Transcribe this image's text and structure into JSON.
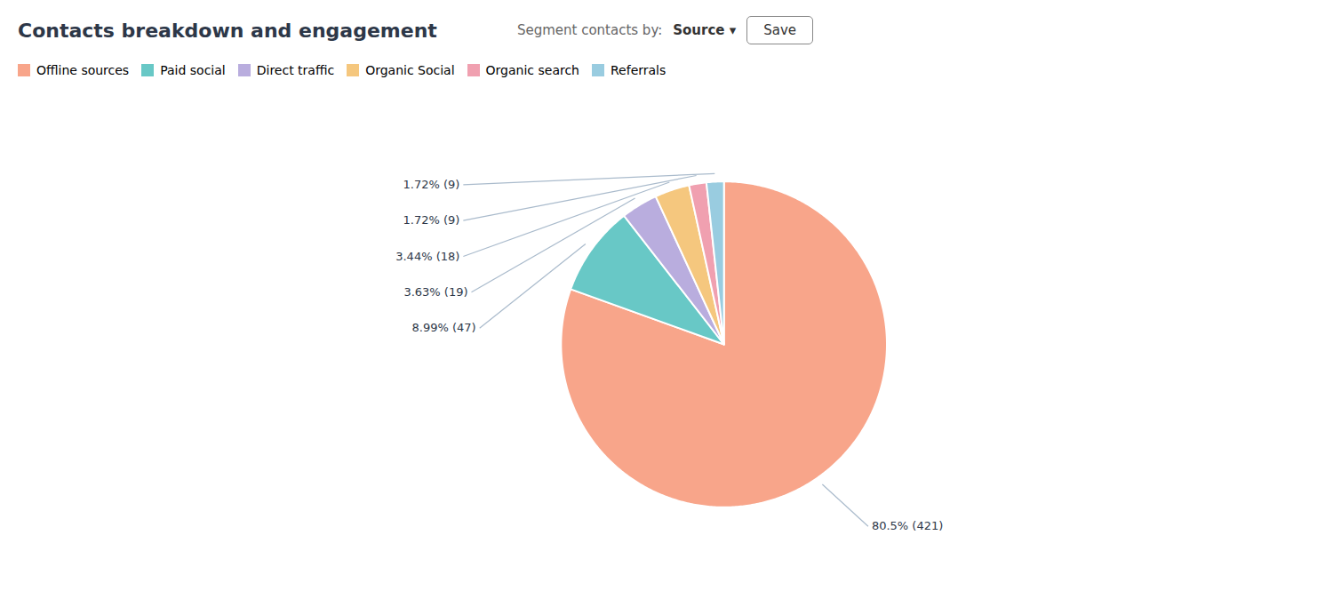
{
  "chart_data": {
    "type": "pie",
    "title": "Contacts breakdown and engagement",
    "annotations": [
      "Segment contacts by:",
      "Source ▾",
      "Save"
    ],
    "categories": [
      "Offline sources",
      "Paid social",
      "Direct traffic",
      "Organic Social",
      "Organic search",
      "Referrals"
    ],
    "values": [
      421,
      47,
      19,
      18,
      9,
      9
    ],
    "value_labels": [
      "80.5% (421)",
      "8.99% (47)",
      "3.63% (19)",
      "3.44% (18)",
      "1.72% (9)",
      "1.72% (9)"
    ],
    "colors": [
      "#f8a58a",
      "#68c8c6",
      "#b9adde",
      "#f5c77e",
      "#f0a0b0",
      "#99cce0"
    ],
    "data_labels": true,
    "legend": "top-left"
  }
}
